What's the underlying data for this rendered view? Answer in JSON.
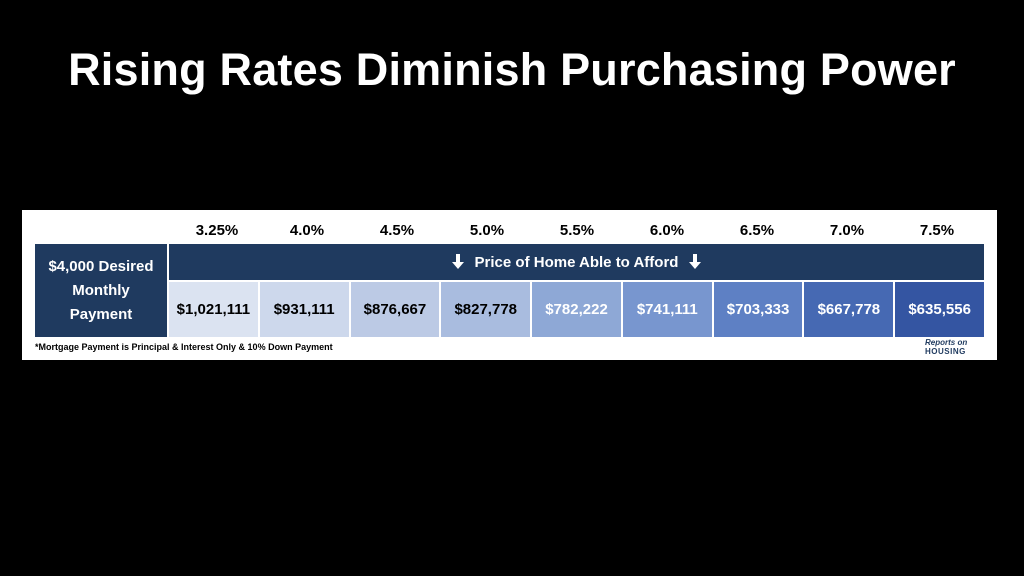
{
  "title": "Rising Rates Diminish Purchasing Power",
  "table": {
    "rates": [
      "3.25%",
      "4.0%",
      "4.5%",
      "5.0%",
      "5.5%",
      "6.0%",
      "6.5%",
      "7.0%",
      "7.5%"
    ],
    "row_label_line1": "$4,000 Desired",
    "row_label_line2": "Monthly",
    "row_label_line3": "Payment",
    "header": "Price of Home Able to Afford",
    "arrow_icon": "arrow-down-icon",
    "prices": [
      "$1,021,111",
      "$931,111",
      "$876,667",
      "$827,778",
      "$782,222",
      "$741,111",
      "$703,333",
      "$667,778",
      "$635,556"
    ],
    "cell_colors": [
      "#dbe3f1",
      "#cdd8ec",
      "#bccae5",
      "#a9bcdf",
      "#8ea8d6",
      "#7896cf",
      "#5e80c4",
      "#4669b3",
      "#3455a2"
    ],
    "cell_text_colors": [
      "#000000",
      "#000000",
      "#000000",
      "#000000",
      "#ffffff",
      "#ffffff",
      "#ffffff",
      "#ffffff",
      "#ffffff"
    ],
    "header_color": "#1f3a5f"
  },
  "footnote": "*Mortgage Payment is Principal & Interest Only & 10% Down Payment",
  "logo": {
    "line1": "Reports on",
    "line2": "HOUSING"
  }
}
